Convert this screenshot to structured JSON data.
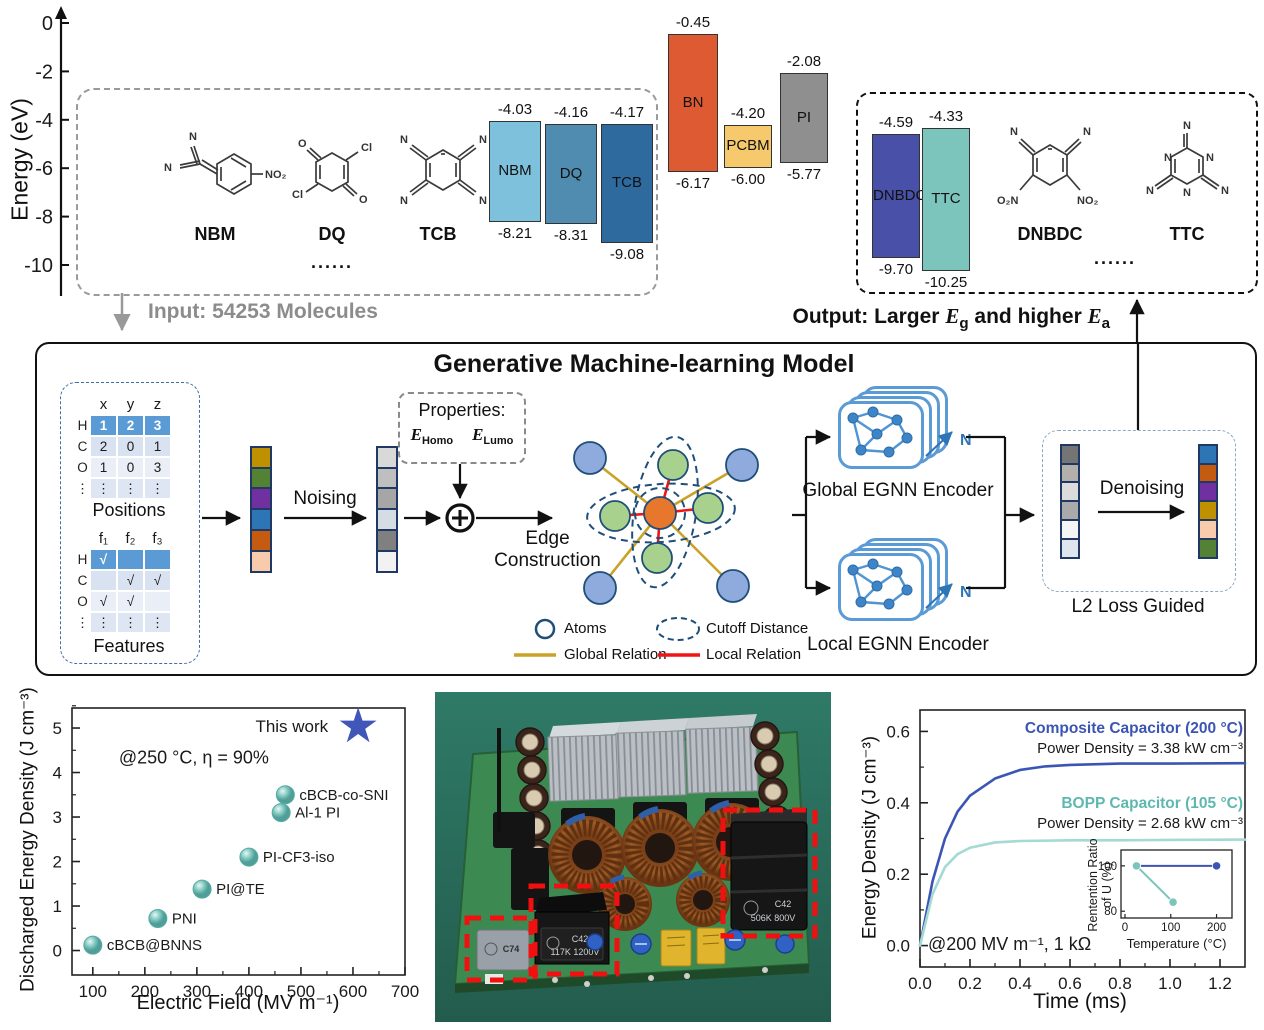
{
  "top": {
    "ylabel": "Energy (eV)",
    "input_caption": "Input: 54253 Molecules",
    "output_caption": {
      "prefix": "Output: Larger ",
      "mid": " and higher ",
      "e_g": {
        "base": "E",
        "sub": "g"
      },
      "e_a": {
        "base": "E",
        "sub": "a"
      }
    },
    "dots": "......",
    "input_molecules": [
      {
        "name": "NBM"
      },
      {
        "name": "DQ"
      },
      {
        "name": "TCB"
      }
    ],
    "output_molecules": [
      {
        "name": "DNBDC"
      },
      {
        "name": "TTC"
      }
    ],
    "molecule_atom_labels": {
      "nbm": [
        "N",
        "N",
        "NO₂"
      ],
      "dq": [
        "O",
        "Cl",
        "Cl",
        "O"
      ],
      "tcb": [
        "N",
        "N",
        "N",
        "N"
      ],
      "dnbdc": [
        "N",
        "N",
        "O₂N",
        "NO₂"
      ],
      "ttc": [
        "N",
        "N",
        "N",
        "N",
        "N",
        "N"
      ]
    }
  },
  "ml": {
    "title": "Generative Machine-learning Model",
    "positions_table": {
      "headers": [
        "x",
        "y",
        "z"
      ],
      "row_labels": [
        "H",
        "C",
        "O",
        "⋮"
      ],
      "rows": [
        [
          "1",
          "2",
          "3"
        ],
        [
          "2",
          "0",
          "1"
        ],
        [
          "1",
          "0",
          "3"
        ],
        [
          "⋮",
          "⋮",
          "⋮"
        ]
      ],
      "caption": "Positions"
    },
    "features_table": {
      "headers": [
        "f₁",
        "f₂",
        "f₃"
      ],
      "row_labels": [
        "H",
        "C",
        "O",
        "⋮"
      ],
      "rows": [
        [
          "√",
          "",
          ""
        ],
        [
          "",
          "√",
          "√"
        ],
        [
          "√",
          "√",
          ""
        ],
        [
          "⋮",
          "⋮",
          "⋮"
        ]
      ],
      "caption": "Features"
    },
    "noising_label": "Noising",
    "properties_label": "Properties:",
    "e_homo": {
      "base": "E",
      "sub": "Homo"
    },
    "e_lumo": {
      "base": "E",
      "sub": "Lumo"
    },
    "edge_label_1": "Edge",
    "edge_label_2": "Construction",
    "global_encoder": "Global EGNN Encoder",
    "local_encoder": "Local EGNN Encoder",
    "n_label": "N",
    "denoising_label": "Denoising",
    "l2_label": "L2 Loss Guided",
    "legend": {
      "atoms": "Atoms",
      "cutoff": "Cutoff Distance",
      "global": "Global Relation",
      "local": "Local Relation"
    },
    "vectors": {
      "input": [
        "#bf9000",
        "#548235",
        "#7030a0",
        "#2e75b6",
        "#c55a11",
        "#f8cbad"
      ],
      "noised": [
        "#d9d9d9",
        "#bfbfbf",
        "#a6a6a6",
        "#d6dce4",
        "#808080",
        "#f2f2f2"
      ],
      "latent": [
        "#757575",
        "#b3b0ac",
        "#dcdcdc",
        "#aaaaaa",
        "#f5f5f5",
        "#dfe5ec"
      ],
      "denoised": [
        "#2e75b6",
        "#c55a11",
        "#7030a0",
        "#bf9000",
        "#f8cbad",
        "#548235"
      ]
    }
  },
  "photo": {
    "labels": {
      "left": "C74",
      "mid1": "C42",
      "mid2": "117K 1200V",
      "right1": "C42",
      "right2": "506K 800V"
    }
  },
  "chart_data": [
    {
      "id": "energy_levels",
      "type": "bar",
      "ylabel": "Energy (eV)",
      "ylim": [
        -11,
        0
      ],
      "yticks": [
        0,
        -2,
        -4,
        -6,
        -8,
        -10
      ],
      "bars": [
        {
          "name": "NBM",
          "lumo": -4.03,
          "homo": -8.21,
          "color": "#7ec1dc",
          "group": "input"
        },
        {
          "name": "DQ",
          "lumo": -4.16,
          "homo": -8.31,
          "color": "#4f8cb0",
          "group": "input"
        },
        {
          "name": "TCB",
          "lumo": -4.17,
          "homo": -9.08,
          "color": "#2f6a9e",
          "group": "input"
        },
        {
          "name": "BN",
          "lumo": -0.45,
          "homo": -6.17,
          "color": "#dd5a33",
          "group": "reference"
        },
        {
          "name": "PCBM",
          "lumo": -4.2,
          "homo": -6.0,
          "color": "#f6ca6c",
          "group": "reference"
        },
        {
          "name": "PI",
          "lumo": -2.08,
          "homo": -5.77,
          "color": "#8f8f8f",
          "group": "reference"
        },
        {
          "name": "DNBDC",
          "lumo": -4.59,
          "homo": -9.7,
          "color": "#4850a8",
          "group": "output"
        },
        {
          "name": "TTC",
          "lumo": -4.33,
          "homo": -10.25,
          "color": "#7cc5bd",
          "group": "output"
        }
      ]
    },
    {
      "id": "discharged_energy_scatter",
      "type": "scatter",
      "xlabel": "Electric Field (MV m⁻¹)",
      "ylabel": "Discharged Energy Density (J cm⁻³)",
      "annotation": "@250 °C, η = 90%",
      "xlim": [
        60,
        700
      ],
      "ylim": [
        -0.55,
        5.45
      ],
      "xticks": [
        100,
        200,
        300,
        400,
        500,
        600,
        700
      ],
      "yticks": [
        0,
        1,
        2,
        3,
        4,
        5
      ],
      "point_color": "#7cc5bd",
      "points": [
        {
          "label": "cBCB@BNNS",
          "x": 100,
          "y": 0.12
        },
        {
          "label": "PNI",
          "x": 225,
          "y": 0.72
        },
        {
          "label": "PI@TE",
          "x": 310,
          "y": 1.38
        },
        {
          "label": "PI-CF3-iso",
          "x": 400,
          "y": 2.1
        },
        {
          "label": "Al-1 PI",
          "x": 462,
          "y": 3.1
        },
        {
          "label": "cBCB-co-SNI",
          "x": 470,
          "y": 3.5
        }
      ],
      "star": {
        "label": "This work",
        "x": 610,
        "y": 5.05,
        "color": "#4056b8"
      }
    },
    {
      "id": "discharge_curves",
      "type": "line",
      "xlabel": "Time (ms)",
      "ylabel": "Energy Density (J cm⁻³)",
      "annotation": "@200 MV m⁻¹, 1 kΩ",
      "xlim": [
        0,
        1.3
      ],
      "ylim": [
        -0.06,
        0.66
      ],
      "xticks": [
        0.0,
        0.2,
        0.4,
        0.6,
        0.8,
        1.0,
        1.2
      ],
      "yticks": [
        0.0,
        0.2,
        0.4,
        0.6
      ],
      "series": [
        {
          "name": "Composite Capacitor (200 °C)",
          "note": "Power Density = 3.38 kW cm⁻³",
          "color": "#3c55b4",
          "label_color": "#3c55b4",
          "plateau": 0.51,
          "points": [
            [
              0,
              0
            ],
            [
              0.05,
              0.18
            ],
            [
              0.1,
              0.3
            ],
            [
              0.15,
              0.375
            ],
            [
              0.2,
              0.42
            ],
            [
              0.3,
              0.468
            ],
            [
              0.4,
              0.492
            ],
            [
              0.5,
              0.502
            ],
            [
              0.6,
              0.506
            ],
            [
              0.8,
              0.51
            ],
            [
              1.0,
              0.51
            ],
            [
              1.3,
              0.511
            ]
          ]
        },
        {
          "name": "BOPP Capacitor (105 °C)",
          "note": "Power Density = 2.68 kW cm⁻³",
          "color": "#a5d9d3",
          "label_color": "#5fb8b0",
          "plateau": 0.295,
          "points": [
            [
              0,
              0
            ],
            [
              0.05,
              0.144
            ],
            [
              0.1,
              0.22
            ],
            [
              0.15,
              0.256
            ],
            [
              0.2,
              0.274
            ],
            [
              0.3,
              0.289
            ],
            [
              0.4,
              0.293
            ],
            [
              0.6,
              0.295
            ],
            [
              0.8,
              0.295
            ],
            [
              1.0,
              0.296
            ],
            [
              1.3,
              0.297
            ]
          ]
        }
      ]
    },
    {
      "id": "retention_inset",
      "type": "line",
      "xlabel": "Temperature (°C)",
      "ylabel_lines": [
        "Rentention Ratio",
        "of U (%)"
      ],
      "xlim": [
        0,
        225
      ],
      "ylim": [
        77,
        107
      ],
      "xticks": [
        0,
        100,
        200
      ],
      "yticks": [
        80,
        100
      ],
      "series": [
        {
          "name": "Composite",
          "color": "#3c55b4",
          "points": [
            [
              25,
              100
            ],
            [
              200,
              100
            ]
          ]
        },
        {
          "name": "BOPP",
          "color": "#7cc5bd",
          "points": [
            [
              25,
              100
            ],
            [
              105,
              84
            ]
          ]
        }
      ]
    }
  ]
}
